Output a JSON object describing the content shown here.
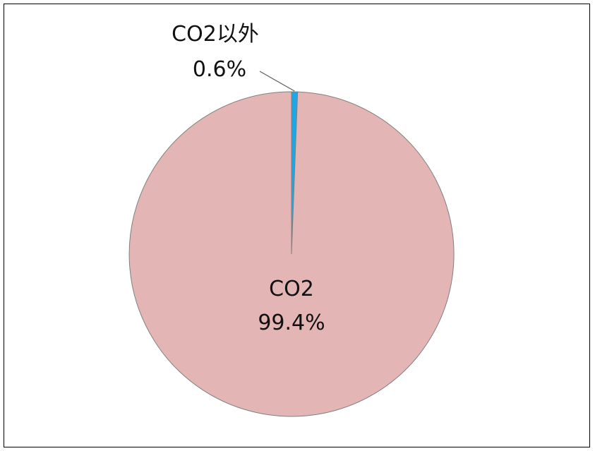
{
  "chart_data": {
    "type": "pie",
    "title": "",
    "slices": [
      {
        "label": "CO2以外",
        "value_label": "0.6%",
        "value": 0.6,
        "color": "#1ea7e6"
      },
      {
        "label": "CO2",
        "value_label": "99.4%",
        "value": 99.4,
        "color": "#e3b5b4"
      }
    ],
    "start_angle_deg": 0,
    "direction": "clockwise",
    "border_color": "#808080"
  }
}
